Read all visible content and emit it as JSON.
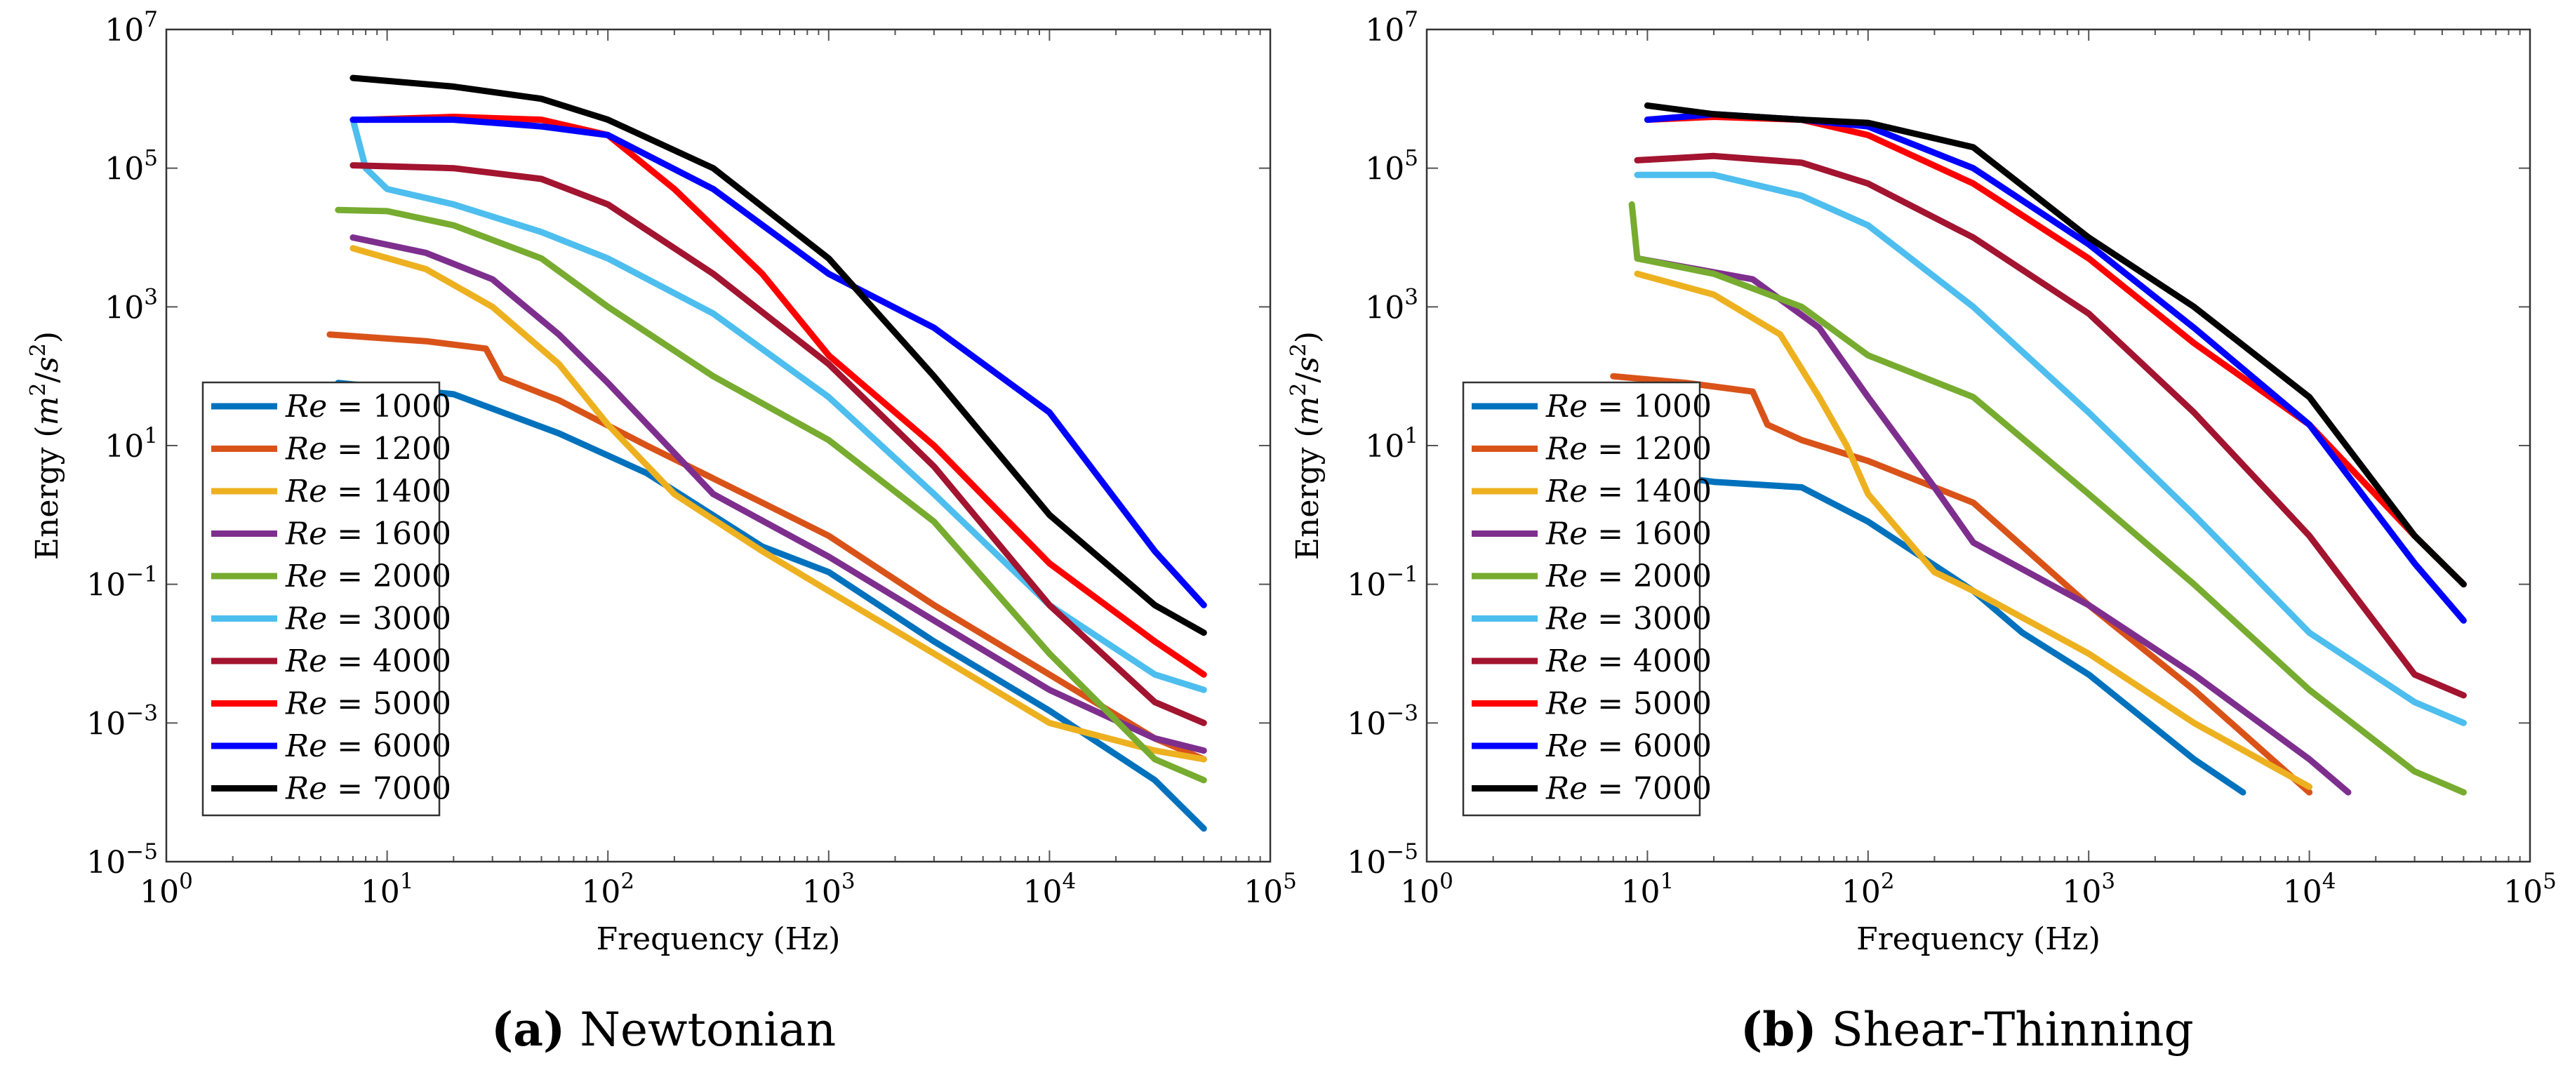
{
  "captions": [
    {
      "label": "(a)",
      "text": "Newtonian"
    },
    {
      "label": "(b)",
      "text": "Shear-Thinning"
    }
  ],
  "series_colors": {
    "Re = 1000": "#0072bd",
    "Re = 1200": "#d95319",
    "Re = 1400": "#edb120",
    "Re = 1600": "#7e2f8e",
    "Re = 2000": "#77ac30",
    "Re = 3000": "#4dbeee",
    "Re = 4000": "#a2142f",
    "Re = 5000": "#ff0000",
    "Re = 6000": "#0000ff",
    "Re = 7000": "#000000"
  },
  "chart_data": [
    {
      "type": "line",
      "title": "Newtonian",
      "xlabel": "Frequency (Hz)",
      "ylabel": "Energy (m^2/s^2)",
      "xscale": "log",
      "yscale": "log",
      "xlim": [
        1,
        100000
      ],
      "ylim": [
        1e-05,
        10000000
      ],
      "x_ticks": [
        {
          "base": "10",
          "exp": "0"
        },
        {
          "base": "10",
          "exp": "1"
        },
        {
          "base": "10",
          "exp": "2"
        },
        {
          "base": "10",
          "exp": "3"
        },
        {
          "base": "10",
          "exp": "4"
        },
        {
          "base": "10",
          "exp": "5"
        }
      ],
      "y_ticks": [
        {
          "base": "10",
          "exp": "−5"
        },
        {
          "base": "10",
          "exp": "−3"
        },
        {
          "base": "10",
          "exp": "−1"
        },
        {
          "base": "10",
          "exp": "1"
        },
        {
          "base": "10",
          "exp": "3"
        },
        {
          "base": "10",
          "exp": "5"
        },
        {
          "base": "10",
          "exp": "7"
        }
      ],
      "legend_position": "left",
      "series": [
        {
          "name": "Re = 1000",
          "x": [
            6,
            20,
            60,
            150,
            500,
            1000,
            3000,
            10000,
            30000,
            50000
          ],
          "y": [
            80,
            55,
            15,
            4,
            0.35,
            0.15,
            0.015,
            0.0015,
            0.00015,
            3e-05
          ]
        },
        {
          "name": "Re = 1200",
          "x": [
            5.5,
            15,
            28,
            33,
            60,
            150,
            500,
            1000,
            3000,
            10000,
            30000,
            50000
          ],
          "y": [
            400,
            320,
            250,
            95,
            45,
            10,
            1.5,
            0.5,
            0.05,
            0.005,
            0.0006,
            0.0003
          ]
        },
        {
          "name": "Re = 1400",
          "x": [
            7,
            15,
            30,
            60,
            100,
            200,
            500,
            1000,
            3000,
            10000,
            30000,
            50000
          ],
          "y": [
            7000,
            3500,
            1000,
            150,
            20,
            2,
            0.3,
            0.08,
            0.01,
            0.001,
            0.0004,
            0.0003
          ]
        },
        {
          "name": "Re = 1600",
          "x": [
            7,
            15,
            30,
            60,
            100,
            300,
            1000,
            3000,
            10000,
            30000,
            50000
          ],
          "y": [
            10000,
            6000,
            2500,
            400,
            80,
            2,
            0.25,
            0.03,
            0.003,
            0.0006,
            0.0004
          ]
        },
        {
          "name": "Re = 2000",
          "x": [
            6,
            10,
            20,
            50,
            100,
            300,
            1000,
            3000,
            10000,
            30000,
            50000
          ],
          "y": [
            25000,
            24000,
            15000,
            5000,
            1000,
            100,
            12,
            0.8,
            0.01,
            0.0003,
            0.00015
          ]
        },
        {
          "name": "Re = 3000",
          "x": [
            7,
            8,
            10,
            20,
            50,
            100,
            300,
            1000,
            3000,
            10000,
            30000,
            50000
          ],
          "y": [
            500000,
            100000,
            50000,
            30000,
            12000,
            5000,
            800,
            50,
            2,
            0.05,
            0.005,
            0.003
          ]
        },
        {
          "name": "Re = 4000",
          "x": [
            7,
            20,
            50,
            100,
            300,
            1000,
            3000,
            10000,
            30000,
            50000
          ],
          "y": [
            110000,
            100000,
            70000,
            30000,
            3000,
            150,
            5,
            0.05,
            0.002,
            0.001
          ]
        },
        {
          "name": "Re = 5000",
          "x": [
            8,
            20,
            50,
            100,
            200,
            500,
            1000,
            3000,
            10000,
            30000,
            50000
          ],
          "y": [
            500000,
            550000,
            500000,
            300000,
            50000,
            3000,
            200,
            10,
            0.2,
            0.015,
            0.005
          ]
        },
        {
          "name": "Re = 6000",
          "x": [
            7,
            20,
            50,
            100,
            300,
            1000,
            3000,
            10000,
            30000,
            50000
          ],
          "y": [
            500000,
            500000,
            400000,
            300000,
            50000,
            3000,
            500,
            30,
            0.3,
            0.05
          ]
        },
        {
          "name": "Re = 7000",
          "x": [
            7,
            20,
            50,
            100,
            300,
            1000,
            3000,
            10000,
            30000,
            50000
          ],
          "y": [
            2000000,
            1500000,
            1000000,
            500000,
            100000,
            5000,
            100,
            1,
            0.05,
            0.02
          ]
        }
      ]
    },
    {
      "type": "line",
      "title": "Shear-Thinning",
      "xlabel": "Frequency (Hz)",
      "ylabel": "Energy (m^2/s^2)",
      "xscale": "log",
      "yscale": "log",
      "xlim": [
        1,
        100000
      ],
      "ylim": [
        1e-05,
        10000000
      ],
      "x_ticks": [
        {
          "base": "10",
          "exp": "0"
        },
        {
          "base": "10",
          "exp": "1"
        },
        {
          "base": "10",
          "exp": "2"
        },
        {
          "base": "10",
          "exp": "3"
        },
        {
          "base": "10",
          "exp": "4"
        },
        {
          "base": "10",
          "exp": "5"
        }
      ],
      "y_ticks": [
        {
          "base": "10",
          "exp": "−5"
        },
        {
          "base": "10",
          "exp": "−3"
        },
        {
          "base": "10",
          "exp": "−1"
        },
        {
          "base": "10",
          "exp": "1"
        },
        {
          "base": "10",
          "exp": "3"
        },
        {
          "base": "10",
          "exp": "5"
        },
        {
          "base": "10",
          "exp": "7"
        }
      ],
      "legend_position": "left",
      "series": [
        {
          "name": "Re = 1000",
          "x": [
            10,
            20,
            50,
            100,
            300,
            500,
            1000,
            3000,
            5000
          ],
          "y": [
            4,
            3,
            2.5,
            0.8,
            0.08,
            0.02,
            0.005,
            0.0003,
            0.0001
          ]
        },
        {
          "name": "Re = 1200",
          "x": [
            7,
            15,
            30,
            35,
            50,
            100,
            300,
            1000,
            3000,
            10000
          ],
          "y": [
            100,
            80,
            60,
            20,
            12,
            6,
            1.5,
            0.05,
            0.003,
            0.0001
          ]
        },
        {
          "name": "Re = 1400",
          "x": [
            9,
            20,
            40,
            60,
            80,
            100,
            200,
            300,
            1000,
            3000,
            10000
          ],
          "y": [
            3000,
            1500,
            400,
            50,
            10,
            2,
            0.15,
            0.08,
            0.01,
            0.001,
            0.00012
          ]
        },
        {
          "name": "Re = 1600",
          "x": [
            9,
            30,
            60,
            100,
            200,
            300,
            1000,
            3000,
            10000,
            15000
          ],
          "y": [
            5000,
            2500,
            500,
            50,
            2.5,
            0.4,
            0.05,
            0.005,
            0.0003,
            0.0001
          ]
        },
        {
          "name": "Re = 2000",
          "x": [
            8.5,
            9,
            20,
            50,
            100,
            300,
            1000,
            3000,
            10000,
            30000,
            50000
          ],
          "y": [
            30000,
            5000,
            3000,
            1000,
            200,
            50,
            2,
            0.1,
            0.003,
            0.0002,
            0.0001
          ]
        },
        {
          "name": "Re = 3000",
          "x": [
            9,
            20,
            50,
            100,
            300,
            1000,
            3000,
            10000,
            30000,
            50000
          ],
          "y": [
            80000,
            80000,
            40000,
            15000,
            1000,
            30,
            1,
            0.02,
            0.002,
            0.001
          ]
        },
        {
          "name": "Re = 4000",
          "x": [
            9,
            20,
            50,
            100,
            300,
            1000,
            3000,
            10000,
            30000,
            50000
          ],
          "y": [
            130000,
            150000,
            120000,
            60000,
            10000,
            800,
            30,
            0.5,
            0.005,
            0.0025
          ]
        },
        {
          "name": "Re = 5000",
          "x": [
            10,
            20,
            50,
            100,
            300,
            1000,
            3000,
            10000,
            30000,
            50000
          ],
          "y": [
            500000,
            550000,
            500000,
            300000,
            60000,
            5000,
            300,
            20,
            0.5,
            0.1
          ]
        },
        {
          "name": "Re = 6000",
          "x": [
            10,
            20,
            50,
            100,
            300,
            1000,
            3000,
            10000,
            30000,
            50000
          ],
          "y": [
            500000,
            600000,
            500000,
            400000,
            100000,
            8000,
            500,
            20,
            0.2,
            0.03
          ]
        },
        {
          "name": "Re = 7000",
          "x": [
            10,
            20,
            50,
            100,
            300,
            1000,
            3000,
            10000,
            30000,
            50000
          ],
          "y": [
            800000,
            600000,
            500000,
            450000,
            200000,
            10000,
            1000,
            50,
            0.5,
            0.1
          ]
        }
      ]
    }
  ]
}
